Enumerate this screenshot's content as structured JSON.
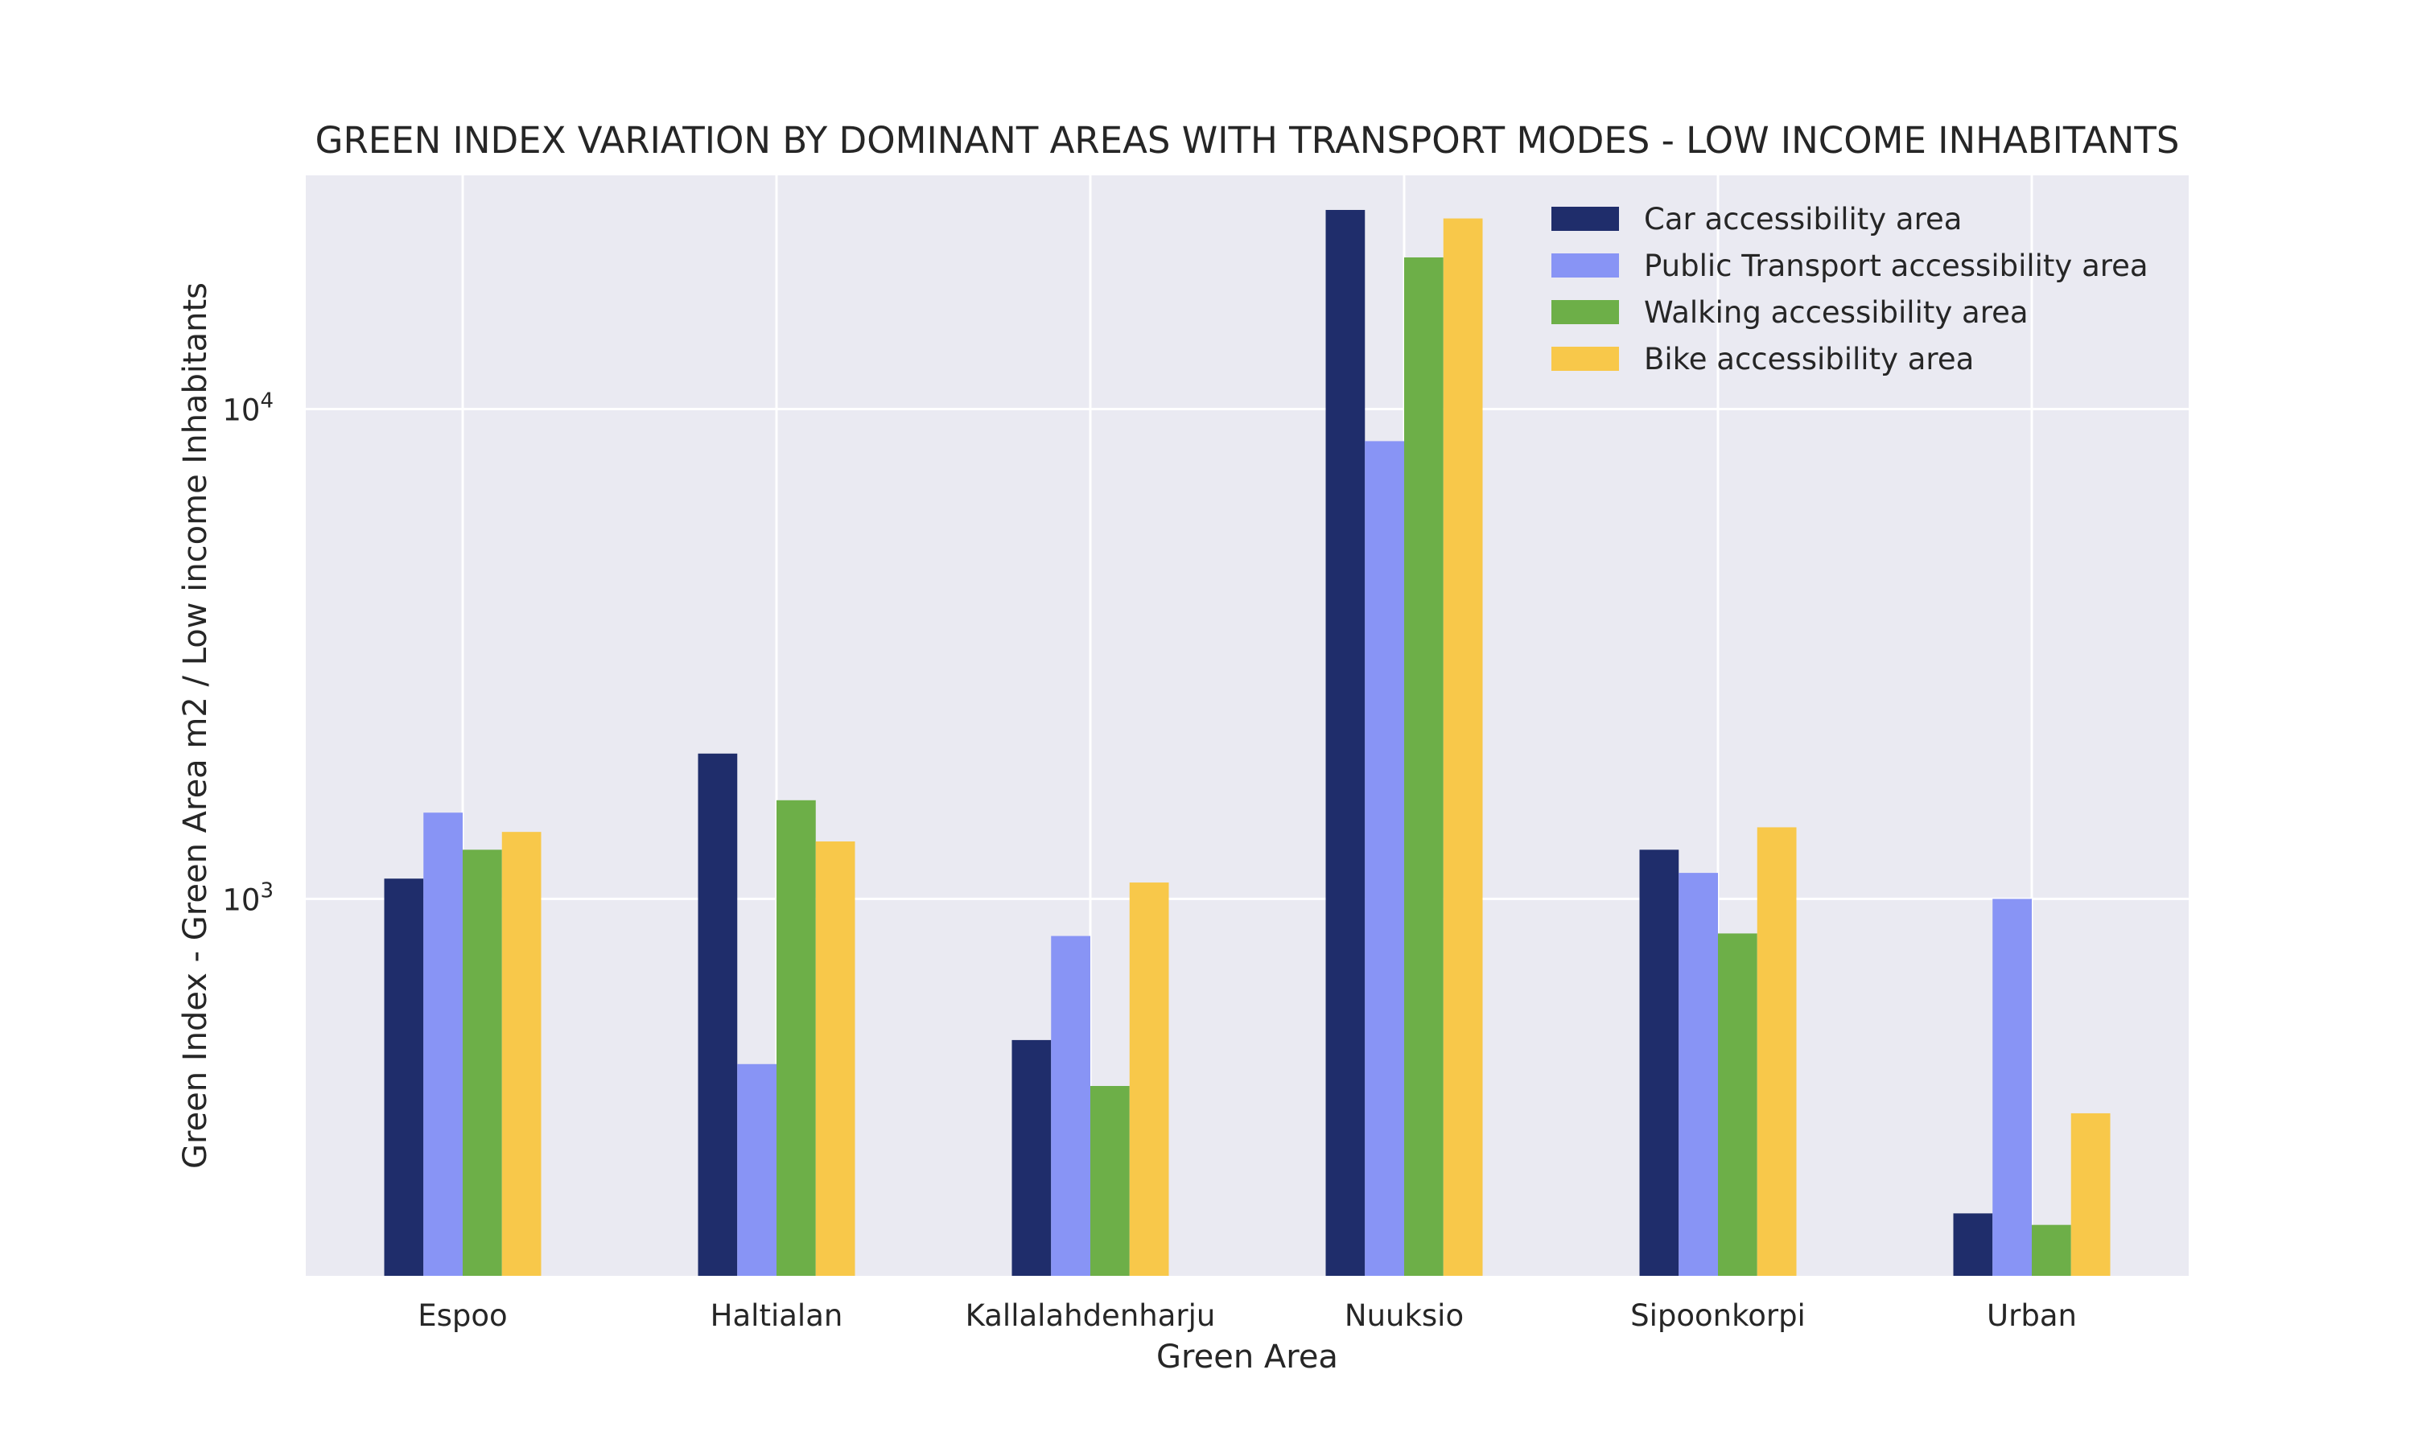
{
  "chart_data": {
    "type": "bar",
    "title": "GREEN INDEX VARIATION BY DOMINANT AREAS WITH TRANSPORT MODES - LOW INCOME INHABITANTS",
    "xlabel": "Green Area",
    "ylabel": "Green Index - Green Area m2 / Low income Inhabitants",
    "yscale": "log",
    "ylim": [
      170,
      30000
    ],
    "yticks": [
      {
        "value": 1000,
        "base": "10",
        "exp": "3"
      },
      {
        "value": 10000,
        "base": "10",
        "exp": "4"
      }
    ],
    "grid": true,
    "legend_position": "top-right",
    "categories": [
      "Espoo",
      "Haltialan",
      "Kallalahdenharju",
      "Nuuksio",
      "Sipoonkorpi",
      "Urban"
    ],
    "series": [
      {
        "name": "Car accessibility area",
        "color": "#1f2d6b",
        "values": [
          1100,
          1980,
          515,
          25500,
          1260,
          228
        ]
      },
      {
        "name": "Public Transport accessibility area",
        "color": "#8894f5",
        "values": [
          1500,
          460,
          840,
          8600,
          1130,
          1000
        ]
      },
      {
        "name": "Walking accessibility area",
        "color": "#6daf48",
        "values": [
          1260,
          1590,
          415,
          20400,
          850,
          216
        ]
      },
      {
        "name": "Bike accessibility area",
        "color": "#f8c84a",
        "values": [
          1370,
          1310,
          1080,
          24500,
          1400,
          365
        ]
      }
    ]
  }
}
